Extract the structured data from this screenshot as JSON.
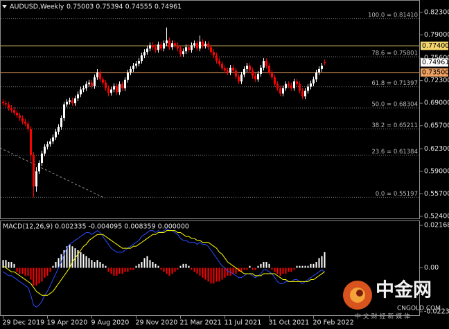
{
  "chart_data": [
    {
      "type": "candlestick",
      "title": "AUDUSD,Weekly",
      "subtitle": "0.75003 0.75394 0.74555 0.74961",
      "up_color": "#ffffff",
      "down_color": "#ff0000",
      "open": [
        0.692,
        0.69,
        0.688,
        0.683,
        0.68,
        0.676,
        0.672,
        0.668,
        0.663,
        0.66,
        0.652,
        0.614,
        0.568,
        0.59,
        0.602,
        0.616,
        0.626,
        0.63,
        0.634,
        0.64,
        0.648,
        0.655,
        0.668,
        0.688,
        0.692,
        0.694,
        0.69,
        0.697,
        0.703,
        0.71,
        0.712,
        0.718,
        0.72,
        0.715,
        0.728,
        0.735,
        0.725,
        0.72,
        0.712,
        0.705,
        0.71,
        0.715,
        0.706,
        0.718,
        0.712,
        0.724,
        0.735,
        0.74,
        0.745,
        0.748,
        0.752,
        0.76,
        0.765,
        0.77,
        0.775,
        0.772,
        0.768,
        0.776,
        0.77,
        0.778,
        0.782,
        0.772,
        0.778,
        0.775,
        0.77,
        0.762,
        0.766,
        0.772,
        0.768,
        0.775,
        0.778,
        0.77,
        0.78,
        0.774,
        0.777,
        0.772,
        0.765,
        0.76,
        0.752,
        0.748,
        0.741,
        0.738,
        0.735,
        0.742,
        0.738,
        0.729,
        0.722,
        0.732,
        0.74,
        0.745,
        0.738,
        0.73,
        0.725,
        0.733,
        0.742,
        0.752,
        0.745,
        0.735,
        0.728,
        0.718,
        0.712,
        0.704,
        0.712,
        0.718,
        0.716,
        0.712,
        0.722,
        0.718,
        0.708,
        0.7,
        0.708,
        0.714,
        0.719,
        0.725,
        0.735,
        0.74,
        0.75003
      ],
      "high": [
        0.696,
        0.694,
        0.692,
        0.687,
        0.684,
        0.68,
        0.676,
        0.672,
        0.667,
        0.664,
        0.656,
        0.618,
        0.596,
        0.606,
        0.62,
        0.63,
        0.634,
        0.638,
        0.644,
        0.652,
        0.659,
        0.672,
        0.692,
        0.696,
        0.698,
        0.698,
        0.701,
        0.707,
        0.714,
        0.716,
        0.722,
        0.724,
        0.724,
        0.732,
        0.74,
        0.739,
        0.729,
        0.724,
        0.716,
        0.714,
        0.719,
        0.719,
        0.722,
        0.722,
        0.728,
        0.739,
        0.744,
        0.749,
        0.752,
        0.756,
        0.764,
        0.769,
        0.774,
        0.779,
        0.779,
        0.776,
        0.78,
        0.78,
        0.782,
        0.801,
        0.786,
        0.782,
        0.782,
        0.779,
        0.774,
        0.77,
        0.776,
        0.776,
        0.779,
        0.782,
        0.782,
        0.789,
        0.784,
        0.781,
        0.781,
        0.776,
        0.769,
        0.764,
        0.756,
        0.752,
        0.745,
        0.742,
        0.746,
        0.746,
        0.742,
        0.733,
        0.736,
        0.744,
        0.749,
        0.749,
        0.742,
        0.734,
        0.737,
        0.746,
        0.756,
        0.756,
        0.749,
        0.739,
        0.732,
        0.722,
        0.716,
        0.716,
        0.722,
        0.722,
        0.72,
        0.726,
        0.726,
        0.722,
        0.712,
        0.712,
        0.718,
        0.723,
        0.729,
        0.739,
        0.744,
        0.749,
        0.75394
      ],
      "low": [
        0.686,
        0.684,
        0.679,
        0.676,
        0.672,
        0.668,
        0.664,
        0.659,
        0.656,
        0.648,
        0.605,
        0.552,
        0.56,
        0.586,
        0.598,
        0.612,
        0.622,
        0.626,
        0.63,
        0.636,
        0.644,
        0.651,
        0.664,
        0.684,
        0.688,
        0.686,
        0.686,
        0.693,
        0.699,
        0.706,
        0.708,
        0.714,
        0.711,
        0.711,
        0.724,
        0.721,
        0.716,
        0.708,
        0.7,
        0.701,
        0.706,
        0.702,
        0.702,
        0.708,
        0.708,
        0.72,
        0.731,
        0.736,
        0.741,
        0.744,
        0.748,
        0.756,
        0.761,
        0.766,
        0.768,
        0.764,
        0.764,
        0.766,
        0.766,
        0.774,
        0.768,
        0.768,
        0.771,
        0.766,
        0.758,
        0.758,
        0.762,
        0.764,
        0.764,
        0.771,
        0.766,
        0.766,
        0.77,
        0.77,
        0.768,
        0.761,
        0.756,
        0.748,
        0.744,
        0.737,
        0.734,
        0.731,
        0.731,
        0.734,
        0.725,
        0.718,
        0.718,
        0.728,
        0.736,
        0.734,
        0.726,
        0.721,
        0.721,
        0.729,
        0.738,
        0.741,
        0.731,
        0.724,
        0.714,
        0.708,
        0.7,
        0.7,
        0.708,
        0.712,
        0.708,
        0.708,
        0.714,
        0.704,
        0.696,
        0.696,
        0.704,
        0.71,
        0.715,
        0.721,
        0.731,
        0.736,
        0.74555
      ],
      "close": [
        0.69,
        0.688,
        0.683,
        0.68,
        0.676,
        0.672,
        0.668,
        0.663,
        0.66,
        0.652,
        0.614,
        0.568,
        0.59,
        0.602,
        0.616,
        0.626,
        0.63,
        0.634,
        0.64,
        0.648,
        0.655,
        0.668,
        0.688,
        0.692,
        0.694,
        0.69,
        0.697,
        0.703,
        0.71,
        0.712,
        0.718,
        0.72,
        0.715,
        0.728,
        0.735,
        0.725,
        0.72,
        0.712,
        0.705,
        0.71,
        0.715,
        0.706,
        0.718,
        0.712,
        0.724,
        0.735,
        0.74,
        0.745,
        0.748,
        0.752,
        0.76,
        0.765,
        0.77,
        0.775,
        0.772,
        0.768,
        0.776,
        0.77,
        0.778,
        0.782,
        0.772,
        0.778,
        0.775,
        0.77,
        0.762,
        0.766,
        0.772,
        0.768,
        0.775,
        0.778,
        0.77,
        0.78,
        0.774,
        0.777,
        0.772,
        0.765,
        0.76,
        0.752,
        0.748,
        0.741,
        0.738,
        0.735,
        0.742,
        0.738,
        0.729,
        0.722,
        0.732,
        0.74,
        0.745,
        0.738,
        0.73,
        0.725,
        0.733,
        0.742,
        0.752,
        0.745,
        0.735,
        0.728,
        0.718,
        0.712,
        0.704,
        0.712,
        0.718,
        0.716,
        0.712,
        0.722,
        0.718,
        0.708,
        0.7,
        0.708,
        0.714,
        0.719,
        0.725,
        0.735,
        0.74,
        0.745,
        0.74961
      ],
      "ylim": [
        0.524,
        0.823
      ],
      "yticks": [
        {
          "value": 0.823,
          "label": "0.82300"
        },
        {
          "value": 0.79,
          "label": "0.79000"
        },
        {
          "value": 0.756,
          "label": "0.75600"
        },
        {
          "value": 0.723,
          "label": "0.72300"
        },
        {
          "value": 0.69,
          "label": "0.69000"
        },
        {
          "value": 0.657,
          "label": "0.65700"
        },
        {
          "value": 0.623,
          "label": "0.62300"
        },
        {
          "value": 0.59,
          "label": "0.59000"
        },
        {
          "value": 0.557,
          "label": "0.55700"
        },
        {
          "value": 0.524,
          "label": "0.52400"
        }
      ],
      "fib_levels": [
        {
          "value": 0.8141,
          "label": "100.0 = 0.81410"
        },
        {
          "value": 0.75801,
          "label": "78.6 = 0.75801"
        },
        {
          "value": 0.71397,
          "label": "61.8 = 0.71397"
        },
        {
          "value": 0.68304,
          "label": "50.0 = 0.68304"
        },
        {
          "value": 0.65211,
          "label": "38.2 = 0.65211"
        },
        {
          "value": 0.61384,
          "label": "23.6 = 0.61384"
        },
        {
          "value": 0.55197,
          "label": "0.0 = 0.55197"
        }
      ],
      "fib_color": "#8a8a8a",
      "hlines": [
        {
          "value": 0.774,
          "label": "0.77400",
          "color": "#f5d76e"
        },
        {
          "value": 0.735,
          "label": "0.73500",
          "color": "#f0a060"
        }
      ],
      "last_price": 0.74961,
      "last_price_color": "#ffffff"
    },
    {
      "type": "macd",
      "title": "MACD(12,26,9) 0.002335 -0.004095 0.008359 0.000000",
      "up_color": "#ffffff",
      "down_color": "#ff0000",
      "histogram": [
        0.004,
        0.004,
        0.003,
        0.003,
        0.002,
        -0.002,
        -0.003,
        -0.003,
        -0.004,
        -0.004,
        -0.006,
        -0.009,
        -0.009,
        -0.008,
        -0.007,
        -0.005,
        -0.004,
        -0.002,
        0.001,
        0.003,
        0.005,
        0.007,
        0.009,
        0.011,
        0.012,
        0.011,
        0.01,
        0.009,
        0.008,
        0.007,
        0.006,
        0.005,
        0.004,
        0.003,
        0.004,
        0.003,
        0.002,
        0.001,
        -0.002,
        -0.003,
        -0.004,
        -0.004,
        -0.003,
        -0.003,
        -0.002,
        -0.002,
        -0.001,
        -0.001,
        0.001,
        0.002,
        0.003,
        0.005,
        0.006,
        0.004,
        0.003,
        0.002,
        0.001,
        -0.001,
        -0.002,
        -0.003,
        -0.004,
        -0.003,
        -0.002,
        -0.001,
        0.001,
        0.002,
        0.002,
        0.001,
        -0.001,
        -0.002,
        -0.003,
        -0.004,
        -0.005,
        -0.006,
        -0.007,
        -0.008,
        -0.008,
        -0.007,
        -0.007,
        -0.006,
        -0.005,
        -0.004,
        -0.004,
        -0.003,
        -0.003,
        -0.002,
        -0.002,
        -0.001,
        -0.001,
        0.001,
        -0.001,
        -0.001,
        0.001,
        0.002,
        0.003,
        0.003,
        0.002,
        -0.001,
        -0.002,
        -0.003,
        -0.004,
        -0.003,
        -0.003,
        -0.002,
        -0.002,
        -0.001,
        0.001,
        0.001,
        0.001,
        0.001,
        0.001,
        0.002,
        0.002,
        0.003,
        0.005,
        0.006,
        0.008
      ],
      "series": [
        {
          "color": "#2a4bff",
          "values": [
            -0.002,
            -0.003,
            -0.004,
            -0.004,
            -0.005,
            -0.006,
            -0.007,
            -0.008,
            -0.009,
            -0.01,
            -0.014,
            -0.019,
            -0.02,
            -0.019,
            -0.017,
            -0.014,
            -0.012,
            -0.009,
            -0.006,
            -0.003,
            0.0,
            0.003,
            0.007,
            0.01,
            0.012,
            0.013,
            0.014,
            0.015,
            0.016,
            0.017,
            0.018,
            0.018,
            0.017,
            0.018,
            0.019,
            0.018,
            0.016,
            0.014,
            0.012,
            0.01,
            0.009,
            0.008,
            0.008,
            0.008,
            0.009,
            0.01,
            0.011,
            0.012,
            0.013,
            0.014,
            0.016,
            0.017,
            0.018,
            0.019,
            0.019,
            0.018,
            0.019,
            0.018,
            0.019,
            0.02,
            0.019,
            0.019,
            0.018,
            0.017,
            0.015,
            0.014,
            0.014,
            0.013,
            0.013,
            0.013,
            0.012,
            0.013,
            0.012,
            0.012,
            0.011,
            0.009,
            0.007,
            0.005,
            0.003,
            0.001,
            0.0,
            -0.002,
            -0.002,
            -0.003,
            -0.004,
            -0.005,
            -0.005,
            -0.004,
            -0.003,
            -0.003,
            -0.004,
            -0.005,
            -0.004,
            -0.003,
            -0.001,
            -0.001,
            -0.002,
            -0.003,
            -0.005,
            -0.007,
            -0.008,
            -0.008,
            -0.007,
            -0.007,
            -0.007,
            -0.006,
            -0.006,
            -0.007,
            -0.008,
            -0.007,
            -0.006,
            -0.005,
            -0.004,
            -0.003,
            -0.002,
            -0.001,
            -0.002
          ]
        },
        {
          "color": "#ffff00",
          "values": [
            0.001,
            0.0,
            -0.001,
            -0.002,
            -0.002,
            -0.003,
            -0.004,
            -0.005,
            -0.006,
            -0.007,
            -0.008,
            -0.01,
            -0.012,
            -0.013,
            -0.014,
            -0.014,
            -0.014,
            -0.013,
            -0.012,
            -0.01,
            -0.008,
            -0.006,
            -0.004,
            -0.002,
            0.0,
            0.003,
            0.005,
            0.007,
            0.009,
            0.011,
            0.012,
            0.014,
            0.015,
            0.016,
            0.017,
            0.017,
            0.017,
            0.016,
            0.015,
            0.014,
            0.013,
            0.012,
            0.011,
            0.01,
            0.01,
            0.01,
            0.01,
            0.011,
            0.011,
            0.012,
            0.013,
            0.014,
            0.015,
            0.016,
            0.017,
            0.017,
            0.018,
            0.018,
            0.018,
            0.019,
            0.019,
            0.019,
            0.019,
            0.018,
            0.018,
            0.017,
            0.016,
            0.016,
            0.015,
            0.015,
            0.014,
            0.014,
            0.013,
            0.013,
            0.013,
            0.012,
            0.011,
            0.01,
            0.008,
            0.007,
            0.005,
            0.003,
            0.002,
            0.001,
            0.0,
            -0.001,
            -0.002,
            -0.003,
            -0.003,
            -0.003,
            -0.003,
            -0.004,
            -0.004,
            -0.004,
            -0.003,
            -0.003,
            -0.003,
            -0.003,
            -0.003,
            -0.004,
            -0.005,
            -0.006,
            -0.006,
            -0.007,
            -0.007,
            -0.007,
            -0.007,
            -0.007,
            -0.007,
            -0.007,
            -0.007,
            -0.006,
            -0.006,
            -0.005,
            -0.004,
            -0.003,
            -0.002
          ]
        }
      ],
      "ylim": [
        -0.022368,
        0.02168
      ],
      "yticks": [
        0.02168,
        {
          "value": 0,
          "label": "0.00"
        },
        -0.022368
      ],
      "xticks": [
        {
          "value": 0,
          "label": "29 Dec 2019"
        },
        {
          "value": 16,
          "label": "19 Apr 2020"
        },
        {
          "value": 32,
          "label": "9 Aug 2020"
        },
        {
          "value": 48,
          "label": "29 Nov 2020"
        },
        {
          "value": 64,
          "label": "21 Mar 2021"
        },
        {
          "value": 80,
          "label": "11 Jul 2021"
        },
        {
          "value": 96,
          "label": "31 Oct 2021"
        },
        {
          "value": 112,
          "label": "20 Feb 2022"
        }
      ]
    }
  ],
  "watermark": {
    "name": "中金网",
    "domain": "CNGOLD.COM",
    "slogan": "中 文 财 经 新 媒 体"
  }
}
